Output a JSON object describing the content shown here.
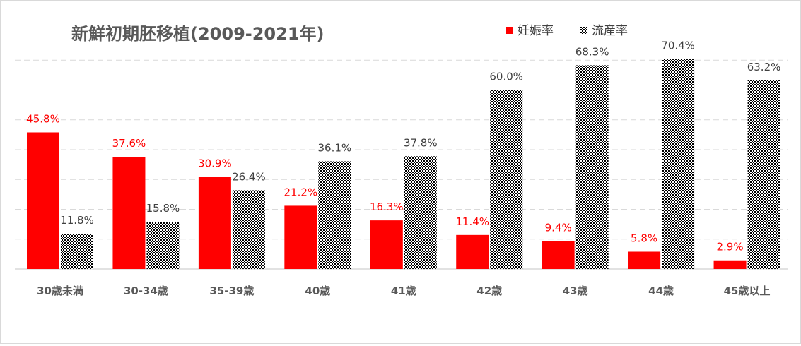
{
  "chart_data": {
    "type": "bar",
    "title": "新鮮初期胚移植(2009-2021年)",
    "categories": [
      "30歳未満",
      "30-34歳",
      "35-39歳",
      "40歳",
      "41歳",
      "42歳",
      "43歳",
      "44歳",
      "45歳以上"
    ],
    "series": [
      {
        "name": "妊娠率",
        "values": [
          45.8,
          37.6,
          30.9,
          21.2,
          16.3,
          11.4,
          9.4,
          5.8,
          2.9
        ],
        "labels": [
          "45.8%",
          "37.6%",
          "30.9%",
          "21.2%",
          "16.3%",
          "11.4%",
          "9.4%",
          "5.8%",
          "2.9%"
        ],
        "color": "#ff0000",
        "label_color": "#ff0000"
      },
      {
        "name": "流産率",
        "values": [
          11.8,
          15.8,
          26.4,
          36.1,
          37.8,
          60.0,
          68.3,
          70.4,
          63.2
        ],
        "labels": [
          "11.8%",
          "15.8%",
          "26.4%",
          "36.1%",
          "37.8%",
          "60.0%",
          "68.3%",
          "70.4%",
          "63.2%"
        ],
        "color": "#000000",
        "pattern": "checkerboard",
        "label_color": "#404040"
      }
    ],
    "ylim": [
      0,
      80
    ],
    "ygrid_step": 10,
    "grid": true,
    "legend_position": "top-right",
    "xlabel": "",
    "ylabel": ""
  }
}
